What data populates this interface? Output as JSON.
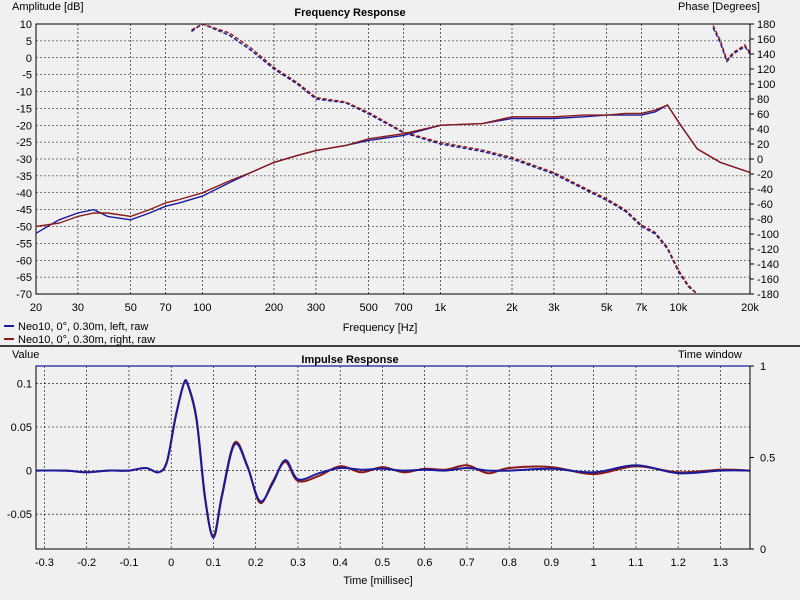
{
  "chart_data": [
    {
      "type": "line",
      "title": "Frequency Response",
      "xlabel": "Frequency [Hz]",
      "ylabel": "Amplitude [dB]",
      "y2label": "Phase [Degrees]",
      "xscale": "log",
      "xlim": [
        20,
        20000
      ],
      "ylim": [
        -70,
        10
      ],
      "y2lim": [
        -180,
        180
      ],
      "grid": true,
      "legend_position": "bottom-left",
      "xticks": [
        20,
        30,
        50,
        70,
        100,
        200,
        300,
        500,
        700,
        1000,
        2000,
        3000,
        5000,
        7000,
        10000,
        20000
      ],
      "xtick_labels": [
        "20",
        "30",
        "50",
        "70",
        "100",
        "200",
        "300",
        "500",
        "700",
        "1k",
        "2k",
        "3k",
        "5k",
        "7k",
        "10k",
        "20k"
      ],
      "yticks": [
        10,
        5,
        0,
        -5,
        -10,
        -15,
        -20,
        -25,
        -30,
        -35,
        -40,
        -45,
        -50,
        -55,
        -60,
        -65,
        -70
      ],
      "y2ticks": [
        180,
        160,
        140,
        120,
        100,
        80,
        60,
        40,
        20,
        0,
        -20,
        -40,
        -60,
        -80,
        -100,
        -120,
        -140,
        -160,
        -180
      ],
      "series": [
        {
          "name": "Neo10, 0°, 0.30m, left, raw",
          "color": "#1a1a9c",
          "amplitude": {
            "x": [
              20,
              25,
              30,
              35,
              40,
              50,
              60,
              70,
              80,
              100,
              130,
              160,
              200,
              250,
              300,
              400,
              500,
              700,
              1000,
              1500,
              2000,
              3000,
              4000,
              5000,
              6000,
              7000,
              8000,
              9000,
              10000,
              12000,
              15000,
              20000
            ],
            "y": [
              -52,
              -48,
              -46,
              -45,
              -47,
              -48,
              -46,
              -44,
              -43,
              -41,
              -37,
              -34,
              -31,
              -29,
              -27.5,
              -26,
              -24.5,
              -23,
              -20,
              -19.5,
              -18,
              -18,
              -17.5,
              -17,
              -17,
              -17,
              -16,
              -14,
              -19,
              -27,
              -31,
              -34
            ]
          },
          "phase": {
            "x": [
              90,
              100,
              130,
              160,
              200,
              250,
              300,
              400,
              500,
              700,
              1000,
              1500,
              2000,
              3000,
              4000,
              5000,
              6000,
              7000,
              8000,
              9000,
              10000,
              11000,
              12000
            ],
            "y": [
              170,
              180,
              165,
              145,
              120,
              100,
              80,
              75,
              60,
              35,
              20,
              10,
              0,
              -20,
              -40,
              -55,
              -70,
              -90,
              -100,
              -120,
              -150,
              -170,
              -180
            ]
          },
          "phase_hf": {
            "x": [
              14000,
              15000,
              16000,
              17000,
              18000,
              19000,
              20000
            ],
            "y": [
              175,
              155,
              130,
              140,
              145,
              150,
              140
            ]
          }
        },
        {
          "name": "Neo10, 0°, 0.30m, right, raw",
          "color": "#8b1a1a",
          "amplitude": {
            "x": [
              20,
              25,
              30,
              35,
              40,
              50,
              60,
              70,
              80,
              100,
              130,
              160,
              200,
              250,
              300,
              400,
              500,
              700,
              1000,
              1500,
              2000,
              3000,
              4000,
              5000,
              6000,
              7000,
              8000,
              9000,
              10000,
              12000,
              15000,
              20000
            ],
            "y": [
              -50,
              -49,
              -47,
              -46,
              -46,
              -47,
              -45,
              -43,
              -42,
              -40,
              -36.5,
              -34,
              -31,
              -29,
              -27.5,
              -26,
              -24,
              -22.5,
              -20,
              -19.5,
              -17.5,
              -17.5,
              -17,
              -17,
              -16.5,
              -16.5,
              -15.5,
              -14,
              -19,
              -27,
              -31,
              -34
            ]
          },
          "phase": {
            "x": [
              90,
              100,
              130,
              160,
              200,
              250,
              300,
              400,
              500,
              700,
              1000,
              1500,
              2000,
              3000,
              4000,
              5000,
              6000,
              7000,
              8000,
              9000,
              10000,
              11000,
              12000
            ],
            "y": [
              172,
              180,
              168,
              148,
              122,
              102,
              82,
              76,
              62,
              36,
              22,
              12,
              2,
              -18,
              -38,
              -53,
              -68,
              -88,
              -98,
              -118,
              -148,
              -168,
              -180
            ]
          },
          "phase_hf": {
            "x": [
              14000,
              15000,
              16000,
              17000,
              18000,
              19000,
              20000
            ],
            "y": [
              178,
              158,
              132,
              142,
              147,
              152,
              142
            ]
          }
        }
      ]
    },
    {
      "type": "line",
      "title": "Impulse Response",
      "xlabel": "Time [millisec]",
      "ylabel": "Value",
      "y2label": "Time window",
      "xlim": [
        -0.32,
        1.37
      ],
      "ylim": [
        -0.09,
        0.12
      ],
      "y2lim": [
        0,
        1
      ],
      "grid": true,
      "xticks": [
        -0.3,
        -0.2,
        -0.1,
        0,
        0.1,
        0.2,
        0.3,
        0.4,
        0.5,
        0.6,
        0.7,
        0.8,
        0.9,
        1,
        1.1,
        1.2,
        1.3
      ],
      "xtick_labels": [
        "-0.3",
        "-0.2",
        "-0.1",
        "0",
        "0.1",
        "0.2",
        "0.3",
        "0.4",
        "0.5",
        "0.6",
        "0.7",
        "0.8",
        "0.9",
        "1",
        "1.1",
        "1.2",
        "1.3"
      ],
      "yticks": [
        0.1,
        0.05,
        0,
        -0.05
      ],
      "ytick_labels": [
        "0.1",
        "0.05",
        "0",
        "-0.05"
      ],
      "y2ticks": [
        1,
        0.5,
        0
      ],
      "y2tick_labels": [
        "1",
        "0.5",
        "0"
      ],
      "series": [
        {
          "name": "Neo10, 0°, 0.30m, left, raw",
          "color": "#1a1a9c",
          "x": [
            -0.32,
            -0.25,
            -0.2,
            -0.15,
            -0.1,
            -0.06,
            -0.03,
            -0.01,
            0.01,
            0.03,
            0.04,
            0.06,
            0.08,
            0.1,
            0.12,
            0.15,
            0.18,
            0.21,
            0.24,
            0.27,
            0.3,
            0.35,
            0.4,
            0.45,
            0.5,
            0.55,
            0.6,
            0.65,
            0.7,
            0.75,
            0.8,
            0.9,
            1.0,
            1.1,
            1.2,
            1.3,
            1.37
          ],
          "y": [
            0,
            0,
            -0.002,
            0,
            0,
            0.003,
            -0.002,
            0.01,
            0.06,
            0.1,
            0.098,
            0.06,
            -0.03,
            -0.077,
            -0.03,
            0.03,
            0.005,
            -0.035,
            -0.015,
            0.012,
            -0.01,
            -0.003,
            0.003,
            0.001,
            0.002,
            0,
            0.001,
            0,
            0.003,
            0,
            0,
            0.002,
            -0.002,
            0.006,
            -0.003,
            0,
            0
          ]
        },
        {
          "name": "Neo10, 0°, 0.30m, right, raw",
          "color": "#8b1a1a",
          "x": [
            -0.32,
            -0.25,
            -0.2,
            -0.15,
            -0.1,
            -0.06,
            -0.03,
            -0.01,
            0.01,
            0.03,
            0.04,
            0.06,
            0.08,
            0.1,
            0.12,
            0.15,
            0.18,
            0.21,
            0.24,
            0.27,
            0.3,
            0.35,
            0.4,
            0.45,
            0.5,
            0.55,
            0.6,
            0.65,
            0.7,
            0.75,
            0.8,
            0.9,
            1.0,
            1.1,
            1.2,
            1.3,
            1.37
          ],
          "y": [
            0,
            0,
            -0.002,
            0,
            0,
            0.003,
            -0.002,
            0.011,
            0.061,
            0.1,
            0.097,
            0.058,
            -0.032,
            -0.075,
            -0.028,
            0.032,
            0.006,
            -0.037,
            -0.013,
            0.01,
            -0.012,
            -0.006,
            0.005,
            -0.002,
            0.004,
            -0.002,
            0.002,
            0.001,
            0.006,
            -0.003,
            0.003,
            0.004,
            -0.004,
            0.005,
            -0.002,
            0.001,
            0
          ]
        }
      ],
      "time_window": {
        "name": "Time window",
        "color": "#1a1a9c",
        "level": 1
      }
    }
  ]
}
